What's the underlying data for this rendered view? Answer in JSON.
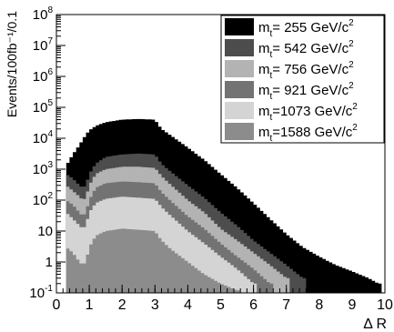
{
  "chart_data": {
    "type": "area",
    "title": "",
    "xlabel": "Δ R",
    "ylabel": "Events/100fb⁻¹/0.1",
    "xlim": [
      0,
      10
    ],
    "ylim": [
      0.1,
      100000000
    ],
    "yscale": "log",
    "x_ticks": [
      0,
      1,
      2,
      3,
      4,
      5,
      6,
      7,
      8,
      9,
      10
    ],
    "y_ticks": [
      {
        "value": 0.1,
        "base": "10",
        "exp": "-1"
      },
      {
        "value": 1,
        "base": "1",
        "exp": ""
      },
      {
        "value": 10,
        "base": "10",
        "exp": ""
      },
      {
        "value": 100,
        "base": "10",
        "exp": "2"
      },
      {
        "value": 1000,
        "base": "10",
        "exp": "3"
      },
      {
        "value": 10000,
        "base": "10",
        "exp": "4"
      },
      {
        "value": 100000,
        "base": "10",
        "exp": "5"
      },
      {
        "value": 1000000,
        "base": "10",
        "exp": "6"
      },
      {
        "value": 10000000,
        "base": "10",
        "exp": "7"
      },
      {
        "value": 100000000,
        "base": "10",
        "exp": "8"
      }
    ],
    "legend_position": "top-right",
    "series": [
      {
        "name": "m_t = 255 GeV/c²",
        "mass": "255",
        "color": "#000000",
        "x": [
          0.3,
          0.5,
          0.7,
          0.8,
          0.9,
          1.0,
          1.2,
          1.5,
          2.0,
          2.5,
          3.0,
          3.2,
          3.5,
          4.0,
          4.5,
          5.0,
          5.5,
          6.0,
          6.5,
          7.0,
          7.5,
          8.0,
          8.5,
          9.0,
          9.5,
          9.8
        ],
        "y": [
          1300,
          3000,
          6000,
          9000,
          13000,
          18000,
          25000,
          33000,
          40000,
          42000,
          40000,
          20000,
          12000,
          5000,
          2000,
          700,
          250,
          80,
          25,
          8,
          3,
          1.5,
          0.8,
          0.5,
          0.3,
          0.2
        ]
      },
      {
        "name": "m_t = 542 GeV/c²",
        "mass": "542",
        "color": "#4d4d4d",
        "x": [
          0.3,
          0.5,
          0.7,
          0.8,
          0.9,
          1.0,
          1.2,
          1.5,
          2.0,
          2.5,
          3.0,
          3.2,
          3.5,
          4.0,
          4.5,
          5.0,
          5.5,
          6.0,
          6.5,
          7.0,
          7.5
        ],
        "y": [
          700,
          500,
          300,
          250,
          300,
          700,
          1500,
          2500,
          3000,
          3200,
          3000,
          1500,
          800,
          300,
          120,
          40,
          15,
          5,
          2,
          0.8,
          0.3
        ]
      },
      {
        "name": "m_t = 756 GeV/c²",
        "mass": "756",
        "color": "#b3b3b3",
        "x": [
          0.3,
          0.5,
          0.7,
          0.8,
          0.9,
          1.0,
          1.2,
          1.5,
          2.0,
          2.5,
          3.0,
          3.2,
          3.5,
          4.0,
          4.5,
          5.0,
          5.5,
          6.0,
          6.5,
          7.0
        ],
        "y": [
          300,
          200,
          130,
          100,
          120,
          300,
          700,
          1000,
          1200,
          1200,
          1100,
          600,
          300,
          100,
          40,
          12,
          5,
          2,
          0.8,
          0.3
        ]
      },
      {
        "name": "m_t = 921 GeV/c²",
        "mass": "921",
        "color": "#737373",
        "x": [
          0.3,
          0.5,
          0.7,
          0.8,
          0.9,
          1.0,
          1.2,
          1.5,
          2.0,
          2.5,
          3.0,
          3.2,
          3.5,
          4.0,
          4.5,
          5.0,
          5.5,
          6.0,
          6.5
        ],
        "y": [
          100,
          70,
          40,
          30,
          40,
          100,
          250,
          350,
          400,
          380,
          350,
          180,
          90,
          30,
          12,
          4,
          1.5,
          0.6,
          0.2
        ]
      },
      {
        "name": "m_t = 1073 GeV/c²",
        "mass": "1073",
        "color": "#d4d4d4",
        "x": [
          0.3,
          0.5,
          0.7,
          0.8,
          0.9,
          1.0,
          1.2,
          1.5,
          2.0,
          2.5,
          3.0,
          3.2,
          3.5,
          4.0,
          4.5,
          5.0,
          5.5,
          6.0
        ],
        "y": [
          40,
          25,
          15,
          12,
          15,
          40,
          80,
          110,
          130,
          120,
          110,
          60,
          30,
          10,
          4,
          1.5,
          0.6,
          0.2
        ]
      },
      {
        "name": "m_t = 1588 GeV/c²",
        "mass": "1588",
        "color": "#8c8c8c",
        "x": [
          0.3,
          0.5,
          0.7,
          0.8,
          0.9,
          1.0,
          1.2,
          1.5,
          2.0,
          2.5,
          3.0,
          3.2,
          3.5,
          4.0,
          4.5,
          5.0,
          5.5
        ],
        "y": [
          3,
          2,
          1,
          0.8,
          1,
          3,
          7,
          10,
          12,
          11,
          10,
          5,
          2.5,
          1,
          0.4,
          0.2,
          0.12
        ]
      }
    ]
  }
}
